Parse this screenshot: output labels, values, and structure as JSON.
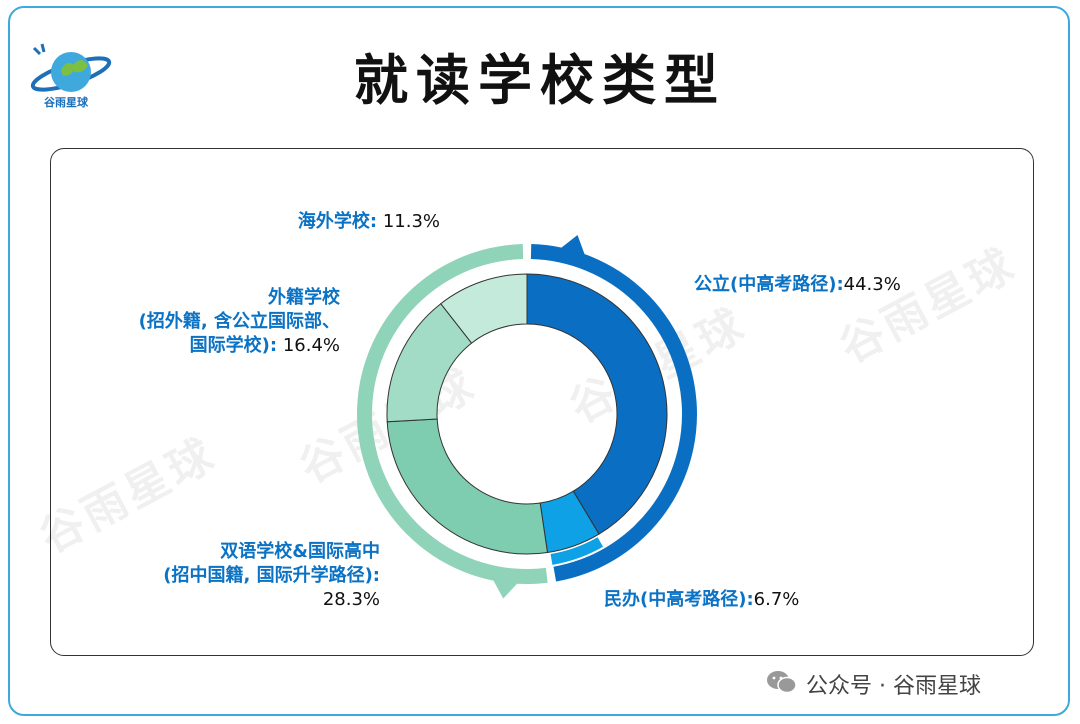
{
  "title": "就读学校类型",
  "logo": {
    "text": "谷雨星球",
    "icon": "planet-leaf-icon"
  },
  "watermark": "谷雨星球",
  "footer": {
    "icon": "wechat-icon",
    "text": "公众号 · 谷雨星球"
  },
  "chart_data": {
    "type": "pie",
    "style": "donut",
    "title": "就读学校类型",
    "slices": [
      {
        "label": "公立(中高考路径)",
        "value": 44.3,
        "value_text": "44.3%",
        "color": "#0a6fc2"
      },
      {
        "label": "民办(中高考路径)",
        "value": 6.7,
        "value_text": "6.7%",
        "color": "#0ea1e6"
      },
      {
        "label": "双语学校&国际高中(招中国籍, 国际升学路径)",
        "value": 28.3,
        "value_text": "28.3%",
        "color": "#7fcdb0"
      },
      {
        "label": "外籍学校(招外籍, 含公立国际部、国际学校)",
        "value": 16.4,
        "value_text": "16.4%",
        "color": "#a3dcc6"
      },
      {
        "label": "海外学校",
        "value": 11.3,
        "value_text": "11.3%",
        "color": "#c4eadb"
      }
    ],
    "outer_ring_groups": [
      {
        "members": [
          "公立(中高考路径)",
          "民办(中高考路径)"
        ],
        "color": "#0a6fc2"
      },
      {
        "members": [
          "双语学校&国际高中(招中国籍, 国际升学路径)",
          "外籍学校(招外籍, 含公立国际部、国际学校)",
          "海外学校"
        ],
        "color": "#8fd3b8"
      }
    ]
  },
  "labels": {
    "overseas": {
      "name": "海外学校:",
      "pct": "11.3%"
    },
    "foreign": {
      "line1": "外籍学校",
      "line2": "(招外籍, 含公立国际部、",
      "line3_name": "国际学校):",
      "pct": "16.4%"
    },
    "public": {
      "name": "公立(中高考路径):",
      "pct": "44.3%"
    },
    "bilingual": {
      "line1": "双语学校&国际高中",
      "line2": "(招中国籍, 国际升学路径):",
      "pct": "28.3%"
    },
    "private": {
      "name": "民办(中高考路径):",
      "pct": "6.7%"
    }
  }
}
